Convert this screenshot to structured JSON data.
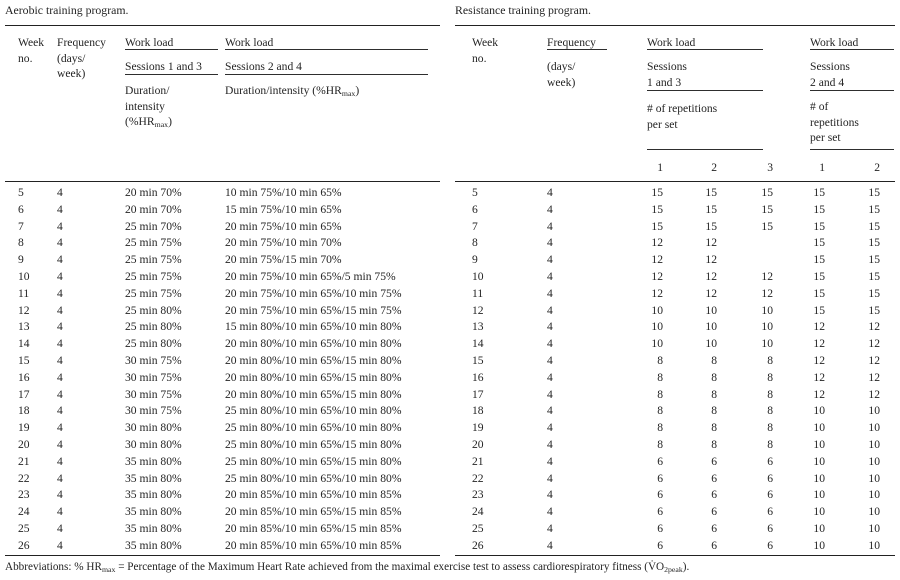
{
  "aerobic": {
    "title": "Aerobic training program.",
    "header": {
      "week_line1": "Week",
      "week_line2": "no.",
      "freq_line1": "Frequency",
      "freq_line2": "(days/",
      "freq_line3": "week)",
      "workload1": "Work load",
      "workload2": "Work load",
      "sessions13": "Sessions 1 and 3",
      "sessions24": "Sessions 2 and 4",
      "duration13_line1": "Duration/",
      "duration13_line2": "intensity",
      "hr_pre": "(%HR",
      "hr_sub": "max",
      "hr_post": ")",
      "duration24_pre": "Duration/intensity (%HR"
    },
    "rows": [
      [
        "5",
        "4",
        "20 min 70%",
        "10 min 75%/10 min 65%"
      ],
      [
        "6",
        "4",
        "20 min 70%",
        "15 min 75%/10 min 65%"
      ],
      [
        "7",
        "4",
        "25 min 70%",
        "20 min 75%/10 min 65%"
      ],
      [
        "8",
        "4",
        "25 min 75%",
        "20 min 75%/10 min 70%"
      ],
      [
        "9",
        "4",
        "25 min 75%",
        "20 min 75%/15 min 70%"
      ],
      [
        "10",
        "4",
        "25 min 75%",
        "20 min 75%/10 min 65%/5 min 75%"
      ],
      [
        "11",
        "4",
        "25 min 75%",
        "20 min 75%/10 min 65%/10 min 75%"
      ],
      [
        "12",
        "4",
        "25 min 80%",
        "20 min 75%/10 min 65%/15 min 75%"
      ],
      [
        "13",
        "4",
        "25 min 80%",
        "15 min 80%/10 min 65%/10 min 80%"
      ],
      [
        "14",
        "4",
        "25 min 80%",
        "20 min 80%/10 min 65%/10 min 80%"
      ],
      [
        "15",
        "4",
        "30 min 75%",
        "20 min 80%/10 min 65%/15 min 80%"
      ],
      [
        "16",
        "4",
        "30 min 75%",
        "20 min 80%/10 min 65%/15 min 80%"
      ],
      [
        "17",
        "4",
        "30 min 75%",
        "20 min 80%/10 min 65%/15 min 80%"
      ],
      [
        "18",
        "4",
        "30 min 75%",
        "25 min 80%/10 min 65%/10 min 80%"
      ],
      [
        "19",
        "4",
        "30 min 80%",
        "25 min 80%/10 min 65%/10 min 80%"
      ],
      [
        "20",
        "4",
        "30 min 80%",
        "25 min 80%/10 min 65%/15 min 80%"
      ],
      [
        "21",
        "4",
        "35 min 80%",
        "25 min 80%/10 min 65%/15 min 80%"
      ],
      [
        "22",
        "4",
        "35 min 80%",
        "25 min 80%/10 min 65%/10 min 80%"
      ],
      [
        "23",
        "4",
        "35 min 80%",
        "20 min 85%/10 min 65%/10 min 85%"
      ],
      [
        "24",
        "4",
        "35 min 80%",
        "20 min 85%/10 min 65%/15 min 85%"
      ],
      [
        "25",
        "4",
        "35 min 80%",
        "20 min 85%/10 min 65%/15 min 85%"
      ],
      [
        "26",
        "4",
        "35 min 80%",
        "20 min 85%/10 min 65%/10 min 85%"
      ]
    ]
  },
  "resistance": {
    "title": "Resistance training program.",
    "header": {
      "week_line1": "Week",
      "week_line2": "no.",
      "freq_line1": "Frequency",
      "freq_line2": "(days/",
      "freq_line3": "week)",
      "workload1": "Work load",
      "workload2": "Work load",
      "sessions13_line1": "Sessions",
      "sessions13_line2": "1 and 3",
      "sessions24_line1": "Sessions",
      "sessions24_line2": "2 and 4",
      "reps13_line1": "# of repetitions",
      "reps13_line2": "per set",
      "reps24_line1": "# of",
      "reps24_line2": "repetitions",
      "reps24_line3": "per set",
      "set_cols13": [
        "1",
        "2",
        "3"
      ],
      "set_cols24": [
        "1",
        "2"
      ]
    },
    "rows": [
      [
        "5",
        "4",
        "15",
        "15",
        "15",
        "15",
        "15"
      ],
      [
        "6",
        "4",
        "15",
        "15",
        "15",
        "15",
        "15"
      ],
      [
        "7",
        "4",
        "15",
        "15",
        "15",
        "15",
        "15"
      ],
      [
        "8",
        "4",
        "12",
        "12",
        "",
        "15",
        "15"
      ],
      [
        "9",
        "4",
        "12",
        "12",
        "",
        "15",
        "15"
      ],
      [
        "10",
        "4",
        "12",
        "12",
        "12",
        "15",
        "15"
      ],
      [
        "11",
        "4",
        "12",
        "12",
        "12",
        "15",
        "15"
      ],
      [
        "12",
        "4",
        "10",
        "10",
        "10",
        "15",
        "15"
      ],
      [
        "13",
        "4",
        "10",
        "10",
        "10",
        "12",
        "12"
      ],
      [
        "14",
        "4",
        "10",
        "10",
        "10",
        "12",
        "12"
      ],
      [
        "15",
        "4",
        "8",
        "8",
        "8",
        "12",
        "12"
      ],
      [
        "16",
        "4",
        "8",
        "8",
        "8",
        "12",
        "12"
      ],
      [
        "17",
        "4",
        "8",
        "8",
        "8",
        "12",
        "12"
      ],
      [
        "18",
        "4",
        "8",
        "8",
        "8",
        "10",
        "10"
      ],
      [
        "19",
        "4",
        "8",
        "8",
        "8",
        "10",
        "10"
      ],
      [
        "20",
        "4",
        "8",
        "8",
        "8",
        "10",
        "10"
      ],
      [
        "21",
        "4",
        "6",
        "6",
        "6",
        "10",
        "10"
      ],
      [
        "22",
        "4",
        "6",
        "6",
        "6",
        "10",
        "10"
      ],
      [
        "23",
        "4",
        "6",
        "6",
        "6",
        "10",
        "10"
      ],
      [
        "24",
        "4",
        "6",
        "6",
        "6",
        "10",
        "10"
      ],
      [
        "25",
        "4",
        "6",
        "6",
        "6",
        "10",
        "10"
      ],
      [
        "26",
        "4",
        "6",
        "6",
        "6",
        "10",
        "10"
      ]
    ]
  },
  "footnote": {
    "part1": "Abbreviations: % HR",
    "sub1": "max",
    "part2": " = Percentage of the Maximum Heart Rate achieved from the maximal exercise test to assess cardiorespiratory fitness (V̇O",
    "sub2": "2peak",
    "part3": ")."
  }
}
